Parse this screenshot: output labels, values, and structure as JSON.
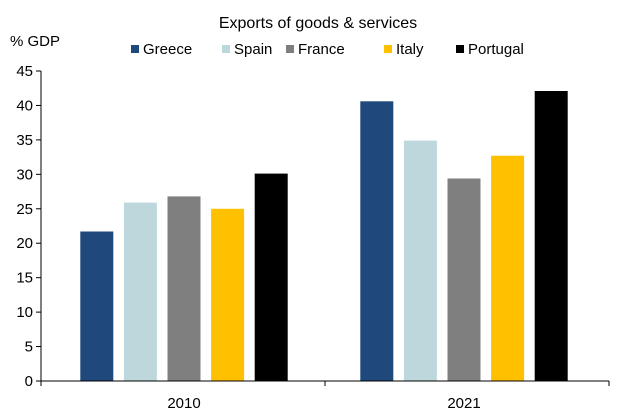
{
  "chart_data": {
    "type": "bar",
    "title": "Exports of goods & services",
    "ylabel": "% GDP",
    "xlabel": "",
    "categories": [
      "2010",
      "2021"
    ],
    "series": [
      {
        "name": "Greece",
        "color": "#1f497d",
        "values": [
          21.7,
          40.6
        ]
      },
      {
        "name": "Spain",
        "color": "#bdd7dd",
        "values": [
          25.9,
          34.9
        ]
      },
      {
        "name": "France",
        "color": "#7f7f7f",
        "values": [
          26.8,
          29.4
        ]
      },
      {
        "name": "Italy",
        "color": "#ffc000",
        "values": [
          25.0,
          32.7
        ]
      },
      {
        "name": "Portugal",
        "color": "#000000",
        "values": [
          30.1,
          42.1
        ]
      }
    ],
    "ylim": [
      0,
      45
    ],
    "yticks": [
      0,
      5,
      10,
      15,
      20,
      25,
      30,
      35,
      40,
      45
    ],
    "ytick_labels": [
      "0",
      "5",
      "10",
      "15",
      "20",
      "25",
      "30",
      "35",
      "40",
      "45"
    ],
    "grid": false,
    "legend_position": "top"
  }
}
